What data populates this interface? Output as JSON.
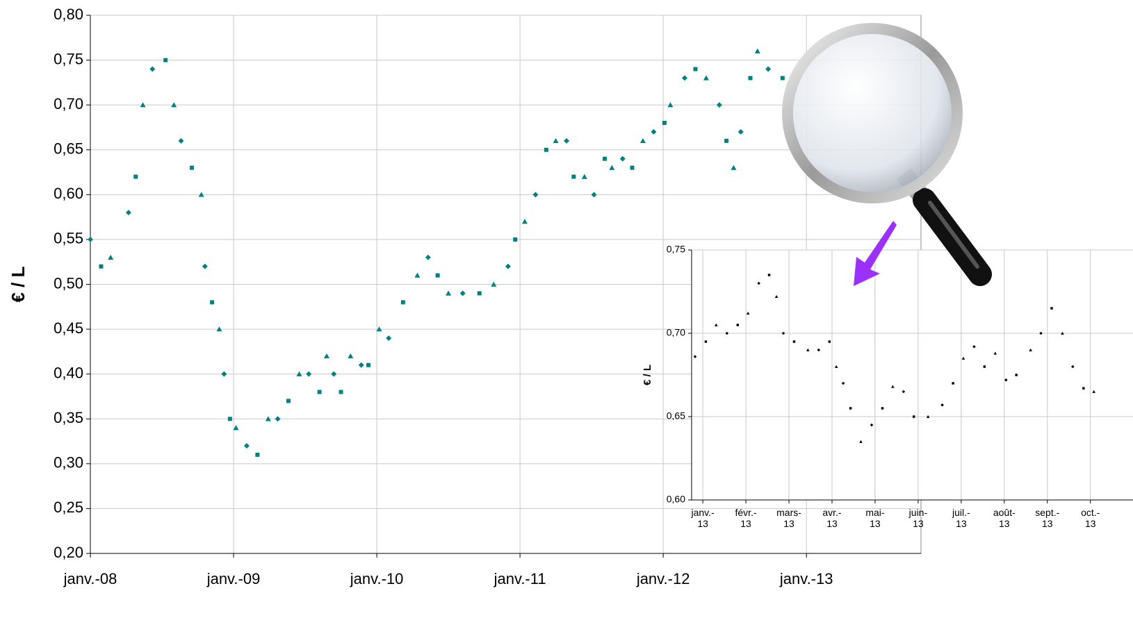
{
  "chart_data": [
    {
      "type": "scatter",
      "y_label": "€ / L",
      "color": "#008080",
      "grid": true,
      "xlim": [
        0,
        69.6
      ],
      "xticks": [
        {
          "value": 0,
          "label": "janv.-08"
        },
        {
          "value": 12,
          "label": "janv.-09"
        },
        {
          "value": 24,
          "label": "janv.-10"
        },
        {
          "value": 36,
          "label": "janv.-11"
        },
        {
          "value": 48,
          "label": "janv.-12"
        },
        {
          "value": 60,
          "label": "janv.-13"
        }
      ],
      "ylim": [
        0.2,
        0.8
      ],
      "yticks": [
        {
          "value": 0.2,
          "label": "0,20"
        },
        {
          "value": 0.25,
          "label": "0,25"
        },
        {
          "value": 0.3,
          "label": "0,30"
        },
        {
          "value": 0.35,
          "label": "0,35"
        },
        {
          "value": 0.4,
          "label": "0,40"
        },
        {
          "value": 0.45,
          "label": "0,45"
        },
        {
          "value": 0.5,
          "label": "0,50"
        },
        {
          "value": 0.55,
          "label": "0,55"
        },
        {
          "value": 0.6,
          "label": "0,60"
        },
        {
          "value": 0.65,
          "label": "0,65"
        },
        {
          "value": 0.7,
          "label": "0,70"
        },
        {
          "value": 0.75,
          "label": "0,75"
        },
        {
          "value": 0.8,
          "label": "0,80"
        }
      ],
      "x": [
        0,
        0.9,
        1.7,
        3.2,
        3.8,
        4.4,
        5.2,
        6.3,
        7.0,
        7.6,
        8.5,
        9.3,
        9.6,
        10.2,
        10.8,
        11.2,
        11.7,
        12.2,
        13.1,
        14.0,
        14.9,
        15.7,
        16.6,
        17.5,
        18.3,
        19.2,
        19.8,
        20.4,
        21.0,
        21.8,
        22.7,
        23.3,
        24.2,
        25.0,
        26.2,
        27.4,
        28.3,
        29.1,
        30.0,
        31.2,
        32.6,
        33.8,
        35.0,
        35.6,
        36.4,
        37.3,
        38.2,
        39.0,
        39.9,
        40.5,
        41.4,
        42.2,
        43.1,
        43.7,
        44.6,
        45.4,
        46.3,
        47.2,
        48.1,
        48.6,
        49.8,
        50.7,
        51.6,
        52.7,
        53.3,
        53.9,
        54.5,
        55.3,
        55.9,
        56.8,
        58.0
      ],
      "values": [
        0.55,
        0.52,
        0.53,
        0.58,
        0.62,
        0.7,
        0.74,
        0.75,
        0.7,
        0.66,
        0.63,
        0.6,
        0.52,
        0.48,
        0.45,
        0.4,
        0.35,
        0.34,
        0.32,
        0.31,
        0.35,
        0.35,
        0.37,
        0.4,
        0.4,
        0.38,
        0.42,
        0.4,
        0.38,
        0.42,
        0.41,
        0.41,
        0.45,
        0.44,
        0.48,
        0.51,
        0.53,
        0.51,
        0.49,
        0.49,
        0.49,
        0.5,
        0.52,
        0.55,
        0.57,
        0.6,
        0.65,
        0.66,
        0.66,
        0.62,
        0.62,
        0.6,
        0.64,
        0.63,
        0.64,
        0.63,
        0.66,
        0.67,
        0.68,
        0.7,
        0.73,
        0.74,
        0.73,
        0.7,
        0.66,
        0.63,
        0.67,
        0.73,
        0.76,
        0.74,
        0.73
      ]
    },
    {
      "type": "scatter",
      "y_label": "€ / L",
      "color": "#000000",
      "grid": true,
      "xlim": [
        -0.26,
        10.15
      ],
      "xticks": [
        {
          "value": 0,
          "label": "janv.- 13"
        },
        {
          "value": 1,
          "label": "févr.- 13"
        },
        {
          "value": 2,
          "label": "mars- 13"
        },
        {
          "value": 3,
          "label": "avr.- 13"
        },
        {
          "value": 4,
          "label": "mai- 13"
        },
        {
          "value": 5,
          "label": "juin- 13"
        },
        {
          "value": 6,
          "label": "juil.- 13"
        },
        {
          "value": 7,
          "label": "août- 13"
        },
        {
          "value": 8,
          "label": "sept.- 13"
        },
        {
          "value": 9,
          "label": "oct.- 13"
        }
      ],
      "ylim": [
        0.6,
        0.75
      ],
      "yticks": [
        {
          "value": 0.6,
          "label": "0,60"
        },
        {
          "value": 0.65,
          "label": "0,65"
        },
        {
          "value": 0.7,
          "label": "0,70"
        },
        {
          "value": 0.75,
          "label": "0,75"
        }
      ],
      "x": [
        -0.18,
        0.07,
        0.31,
        0.56,
        0.81,
        1.05,
        1.3,
        1.54,
        1.71,
        1.87,
        2.12,
        2.44,
        2.69,
        2.94,
        3.1,
        3.26,
        3.43,
        3.67,
        3.92,
        4.17,
        4.41,
        4.66,
        4.9,
        5.23,
        5.56,
        5.81,
        6.05,
        6.3,
        6.54,
        6.79,
        7.04,
        7.28,
        7.61,
        7.85,
        8.1,
        8.35,
        8.59,
        8.84,
        9.08
      ],
      "values": [
        0.686,
        0.695,
        0.705,
        0.7,
        0.705,
        0.712,
        0.73,
        0.735,
        0.722,
        0.7,
        0.695,
        0.69,
        0.69,
        0.695,
        0.68,
        0.67,
        0.655,
        0.635,
        0.645,
        0.655,
        0.668,
        0.665,
        0.65,
        0.65,
        0.657,
        0.67,
        0.685,
        0.692,
        0.68,
        0.688,
        0.672,
        0.675,
        0.69,
        0.7,
        0.715,
        0.7,
        0.68,
        0.667,
        0.665
      ]
    }
  ]
}
